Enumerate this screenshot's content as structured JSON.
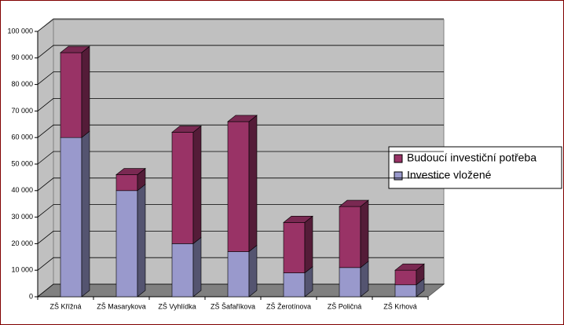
{
  "chart_data": {
    "type": "bar3d_stacked",
    "categories": [
      "ZŠ Křížná",
      "ZŠ Masarykova",
      "ZŠ Vyhlídka",
      "ZŠ Šafaříkova",
      "ZŠ Žerotínova",
      "ZŠ Poličná",
      "ZŠ Krhová"
    ],
    "series": [
      {
        "name": "Investice vložené",
        "color": "#9999cc",
        "values": [
          60000,
          40000,
          20000,
          17000,
          9000,
          11000,
          4500
        ]
      },
      {
        "name": "Budoucí investiční potřeba",
        "color": "#993366",
        "values": [
          32000,
          6000,
          42000,
          49000,
          19000,
          23000,
          5500
        ]
      }
    ],
    "ylim": [
      0,
      100000
    ],
    "yticks": [
      0,
      {
        "value": 10000,
        "label": "10 000"
      },
      {
        "value": 20000,
        "label": "20 000"
      },
      {
        "value": 30000,
        "label": "30 000"
      },
      {
        "value": 40000,
        "label": "40 000"
      },
      {
        "value": 50000,
        "label": "50 000"
      },
      {
        "value": 60000,
        "label": "60 000"
      },
      {
        "value": 70000,
        "label": "70 000"
      },
      {
        "value": 80000,
        "label": "80 000"
      },
      {
        "value": 90000,
        "label": "90 000"
      },
      {
        "value": 100000,
        "label": "100 000"
      }
    ],
    "grid": true,
    "legend": "right"
  }
}
